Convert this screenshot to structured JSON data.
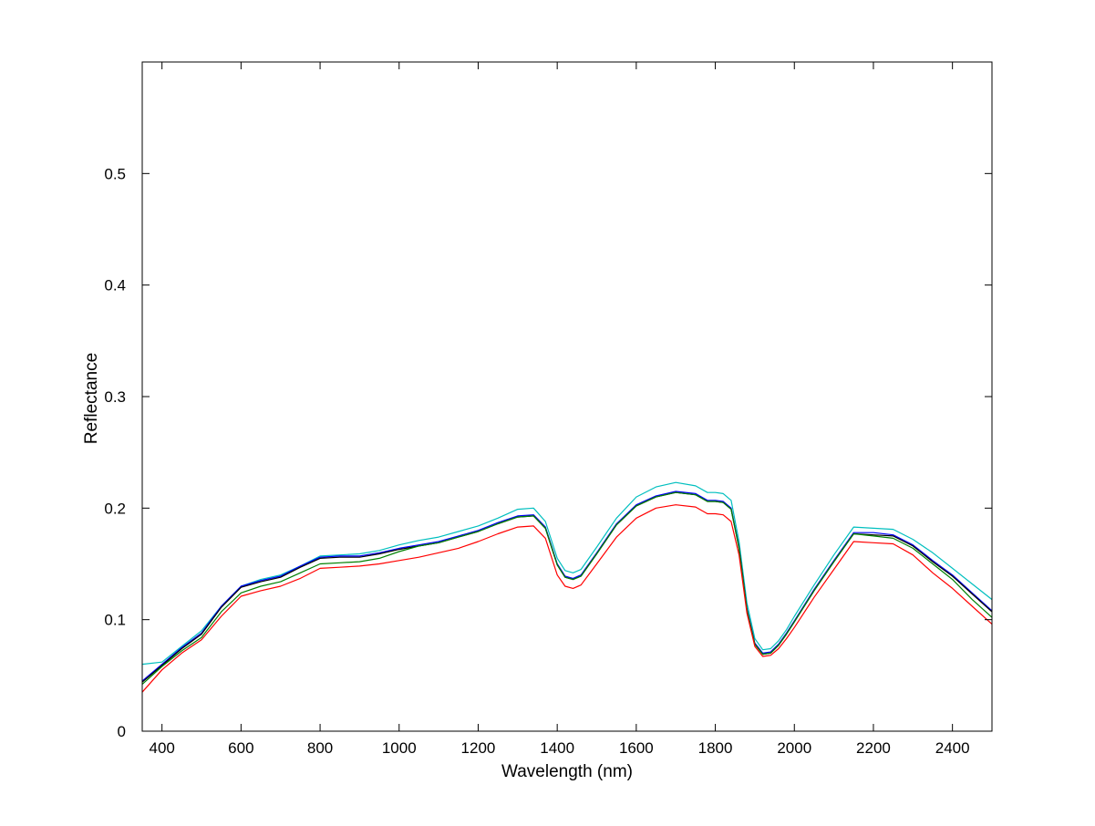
{
  "chart_data": {
    "type": "line",
    "title": "",
    "xlabel": "Wavelength (nm)",
    "ylabel": "Reflectance",
    "xlim": [
      350,
      2500
    ],
    "ylim": [
      0,
      0.6
    ],
    "xticks": [
      400,
      600,
      800,
      1000,
      1200,
      1400,
      1600,
      1800,
      2000,
      2200,
      2400
    ],
    "yticks": [
      0,
      0.1,
      0.2,
      0.3,
      0.4,
      0.5
    ],
    "ytick_labels": [
      "0",
      "0.1",
      "0.2",
      "0.3",
      "0.4",
      "0.5"
    ],
    "grid": false,
    "legend": "none",
    "series": [
      {
        "color": "#00BFBF",
        "x": [
          350,
          400,
          450,
          500,
          550,
          600,
          650,
          700,
          750,
          800,
          850,
          900,
          950,
          1000,
          1050,
          1100,
          1150,
          1200,
          1250,
          1300,
          1340,
          1370,
          1400,
          1420,
          1440,
          1460,
          1500,
          1550,
          1600,
          1650,
          1700,
          1750,
          1780,
          1800,
          1820,
          1840,
          1860,
          1880,
          1900,
          1920,
          1940,
          1960,
          1980,
          2000,
          2050,
          2100,
          2150,
          2200,
          2250,
          2300,
          2350,
          2400,
          2450,
          2500
        ],
        "y": [
          0.06,
          0.062,
          0.076,
          0.09,
          0.112,
          0.13,
          0.136,
          0.14,
          0.148,
          0.157,
          0.158,
          0.159,
          0.162,
          0.167,
          0.171,
          0.174,
          0.179,
          0.184,
          0.191,
          0.199,
          0.2,
          0.188,
          0.155,
          0.144,
          0.142,
          0.145,
          0.165,
          0.191,
          0.21,
          0.219,
          0.223,
          0.22,
          0.214,
          0.214,
          0.213,
          0.207,
          0.17,
          0.115,
          0.083,
          0.073,
          0.074,
          0.081,
          0.091,
          0.103,
          0.131,
          0.158,
          0.183,
          0.182,
          0.181,
          0.172,
          0.16,
          0.146,
          0.132,
          0.118
        ]
      },
      {
        "color": "#0000FF",
        "x": [
          350,
          400,
          450,
          500,
          550,
          600,
          650,
          700,
          750,
          800,
          850,
          900,
          950,
          1000,
          1050,
          1100,
          1150,
          1200,
          1250,
          1300,
          1340,
          1370,
          1400,
          1420,
          1440,
          1460,
          1500,
          1550,
          1600,
          1650,
          1700,
          1750,
          1780,
          1800,
          1820,
          1840,
          1860,
          1880,
          1900,
          1920,
          1940,
          1960,
          1980,
          2000,
          2050,
          2100,
          2150,
          2200,
          2250,
          2300,
          2350,
          2400,
          2450,
          2500
        ],
        "y": [
          0.045,
          0.06,
          0.075,
          0.088,
          0.112,
          0.13,
          0.135,
          0.139,
          0.148,
          0.156,
          0.157,
          0.157,
          0.16,
          0.164,
          0.167,
          0.17,
          0.175,
          0.18,
          0.187,
          0.193,
          0.194,
          0.183,
          0.15,
          0.139,
          0.137,
          0.14,
          0.16,
          0.186,
          0.203,
          0.211,
          0.215,
          0.213,
          0.207,
          0.207,
          0.206,
          0.2,
          0.165,
          0.11,
          0.079,
          0.07,
          0.071,
          0.078,
          0.088,
          0.099,
          0.127,
          0.153,
          0.178,
          0.178,
          0.176,
          0.167,
          0.153,
          0.14,
          0.124,
          0.108
        ]
      },
      {
        "color": "#000000",
        "x": [
          350,
          400,
          450,
          500,
          550,
          600,
          650,
          700,
          750,
          800,
          850,
          900,
          950,
          1000,
          1050,
          1100,
          1150,
          1200,
          1250,
          1300,
          1340,
          1370,
          1400,
          1420,
          1440,
          1460,
          1500,
          1550,
          1600,
          1650,
          1700,
          1750,
          1780,
          1800,
          1820,
          1840,
          1860,
          1880,
          1900,
          1920,
          1940,
          1960,
          1980,
          2000,
          2050,
          2100,
          2150,
          2200,
          2250,
          2300,
          2350,
          2400,
          2450,
          2500
        ],
        "y": [
          0.044,
          0.059,
          0.074,
          0.087,
          0.111,
          0.129,
          0.134,
          0.138,
          0.147,
          0.155,
          0.156,
          0.156,
          0.159,
          0.163,
          0.166,
          0.169,
          0.174,
          0.179,
          0.186,
          0.192,
          0.193,
          0.182,
          0.149,
          0.138,
          0.136,
          0.139,
          0.159,
          0.185,
          0.202,
          0.21,
          0.214,
          0.212,
          0.206,
          0.206,
          0.205,
          0.199,
          0.164,
          0.109,
          0.078,
          0.069,
          0.07,
          0.077,
          0.087,
          0.098,
          0.126,
          0.152,
          0.177,
          0.176,
          0.175,
          0.166,
          0.152,
          0.139,
          0.123,
          0.107
        ]
      },
      {
        "color": "#008000",
        "x": [
          350,
          400,
          450,
          500,
          550,
          600,
          650,
          700,
          750,
          800,
          850,
          900,
          950,
          1000,
          1050,
          1100,
          1150,
          1200,
          1250,
          1300,
          1340,
          1370,
          1400,
          1420,
          1440,
          1460,
          1500,
          1550,
          1600,
          1650,
          1700,
          1750,
          1780,
          1800,
          1820,
          1840,
          1860,
          1880,
          1900,
          1920,
          1940,
          1960,
          1980,
          2000,
          2050,
          2100,
          2150,
          2200,
          2250,
          2300,
          2350,
          2400,
          2450,
          2500
        ],
        "y": [
          0.042,
          0.058,
          0.072,
          0.084,
          0.107,
          0.124,
          0.13,
          0.134,
          0.142,
          0.15,
          0.151,
          0.152,
          0.155,
          0.161,
          0.166,
          0.169,
          0.174,
          0.179,
          0.186,
          0.192,
          0.193,
          0.182,
          0.149,
          0.138,
          0.136,
          0.139,
          0.159,
          0.185,
          0.202,
          0.21,
          0.214,
          0.212,
          0.206,
          0.206,
          0.205,
          0.199,
          0.164,
          0.109,
          0.078,
          0.069,
          0.07,
          0.077,
          0.087,
          0.098,
          0.126,
          0.152,
          0.177,
          0.175,
          0.173,
          0.164,
          0.15,
          0.136,
          0.118,
          0.102
        ]
      },
      {
        "color": "#FF0000",
        "x": [
          350,
          400,
          450,
          500,
          550,
          600,
          650,
          700,
          750,
          800,
          850,
          900,
          950,
          1000,
          1050,
          1100,
          1150,
          1200,
          1250,
          1300,
          1340,
          1370,
          1400,
          1420,
          1440,
          1460,
          1500,
          1550,
          1600,
          1650,
          1700,
          1750,
          1780,
          1800,
          1820,
          1840,
          1860,
          1880,
          1900,
          1920,
          1940,
          1960,
          1980,
          2000,
          2050,
          2100,
          2150,
          2200,
          2250,
          2300,
          2350,
          2400,
          2450,
          2500
        ],
        "y": [
          0.035,
          0.055,
          0.07,
          0.082,
          0.103,
          0.121,
          0.126,
          0.13,
          0.137,
          0.146,
          0.147,
          0.148,
          0.15,
          0.153,
          0.156,
          0.16,
          0.164,
          0.17,
          0.177,
          0.183,
          0.184,
          0.173,
          0.14,
          0.13,
          0.128,
          0.131,
          0.15,
          0.174,
          0.191,
          0.2,
          0.203,
          0.201,
          0.195,
          0.195,
          0.194,
          0.188,
          0.158,
          0.106,
          0.076,
          0.067,
          0.068,
          0.074,
          0.083,
          0.093,
          0.12,
          0.145,
          0.17,
          0.169,
          0.168,
          0.158,
          0.142,
          0.128,
          0.112,
          0.096
        ]
      }
    ]
  }
}
